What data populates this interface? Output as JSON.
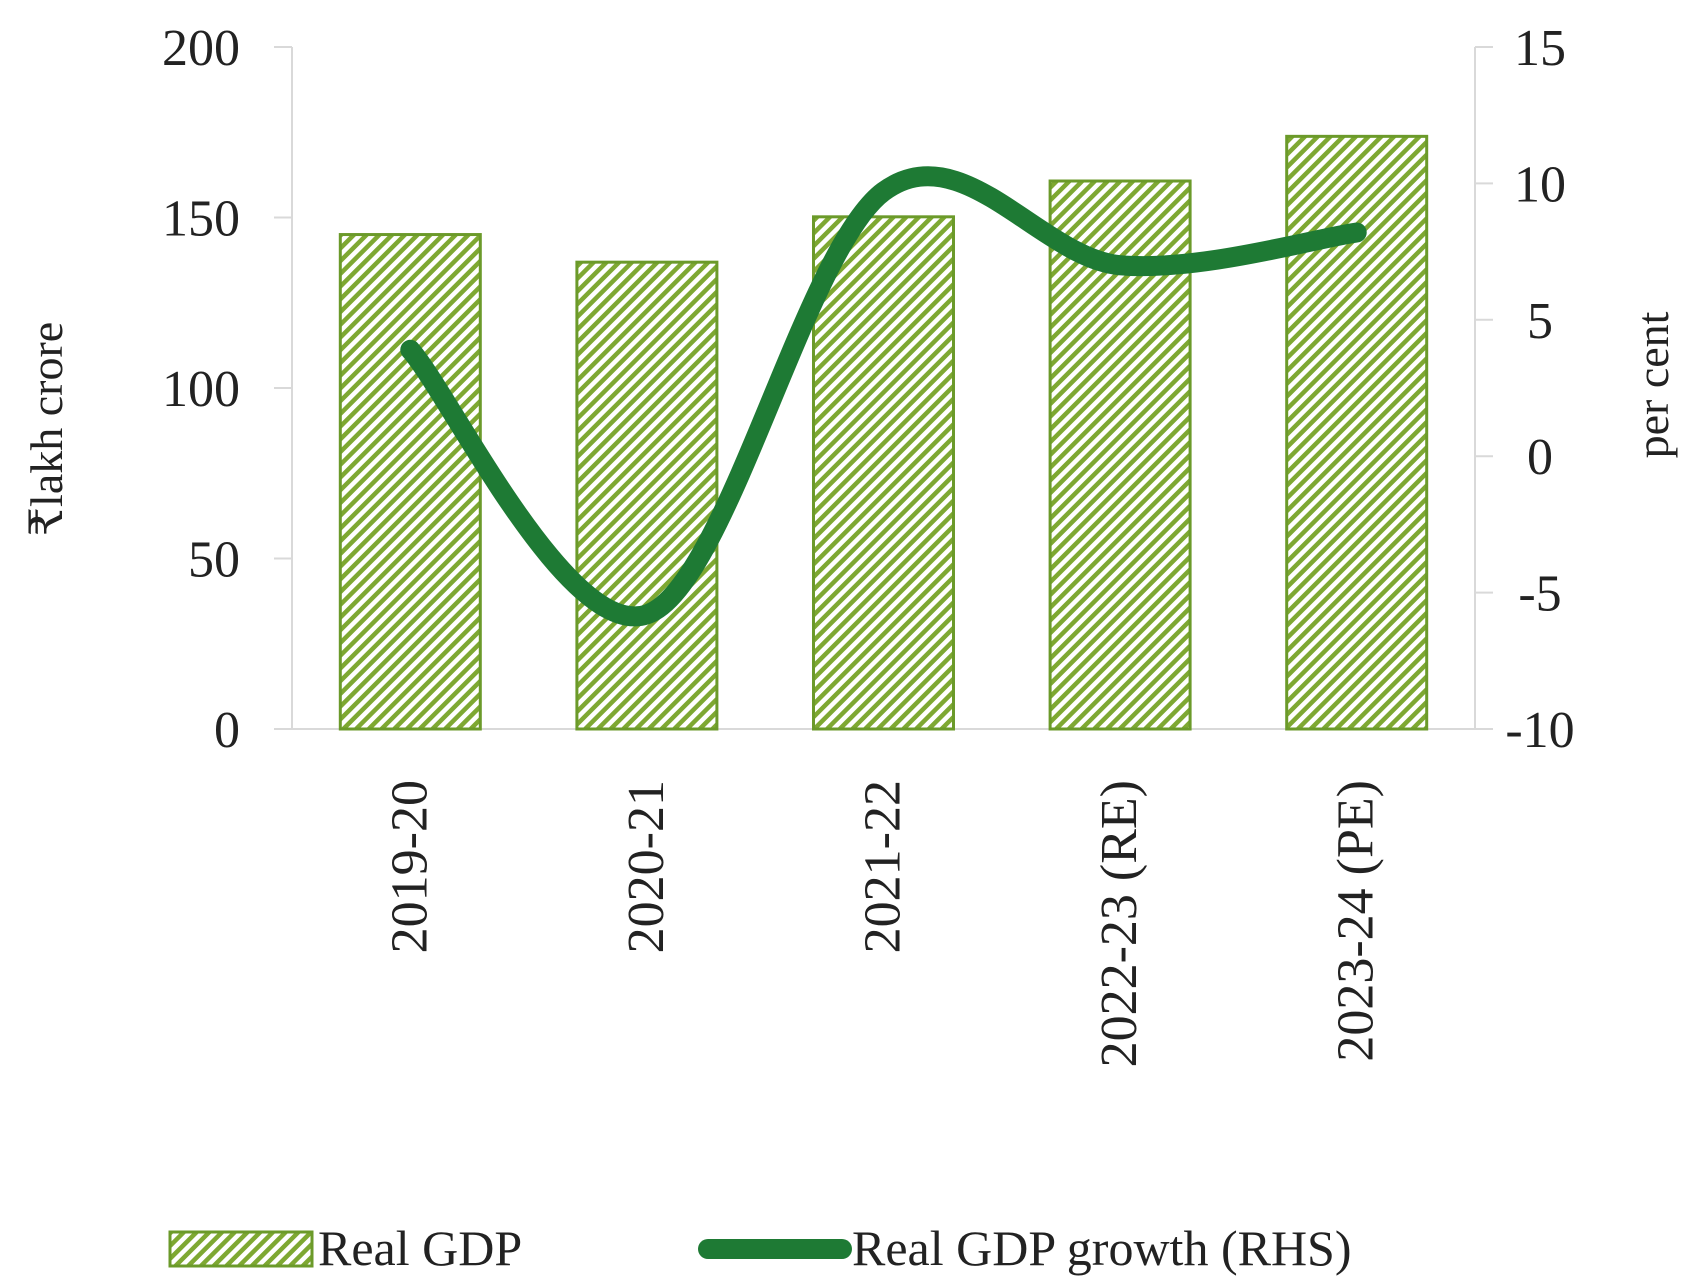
{
  "chart_data": {
    "type": "bar",
    "categories": [
      "2019-20",
      "2020-21",
      "2021-22",
      "2022-23 (RE)",
      "2023-24 (PE)"
    ],
    "series": [
      {
        "name": "Real GDP",
        "type": "bar",
        "axis": "left",
        "values": [
          145,
          136.9,
          150.2,
          160.7,
          173.8
        ]
      },
      {
        "name": "Real GDP growth (RHS)",
        "type": "line",
        "axis": "right",
        "values": [
          3.9,
          -5.8,
          9.7,
          7.0,
          8.2
        ]
      }
    ],
    "ylabel": "₹lakh crore",
    "y2label": "per cent",
    "ylim": [
      0,
      200
    ],
    "y2lim": [
      -10,
      15
    ],
    "yticks": [
      "0",
      "50",
      "100",
      "150",
      "200"
    ],
    "y2ticks": [
      "-10",
      "-5",
      "0",
      "5",
      "10",
      "15"
    ],
    "legend_position": "bottom",
    "colors": {
      "bar_stroke": "#6b9a2a",
      "bar_hatch": "#7ea832",
      "line": "#1e7a34",
      "axis": "#d9d9d9"
    }
  }
}
